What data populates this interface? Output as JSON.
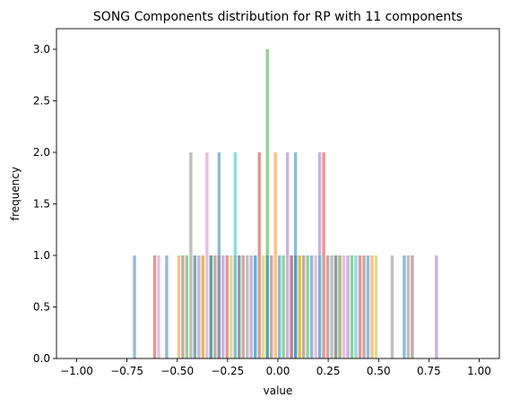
{
  "chart_data": {
    "type": "bar",
    "title": "SONG Components distribution for RP with 11 components",
    "xlabel": "value",
    "ylabel": "frequency",
    "xlim": [
      -1.1,
      1.1
    ],
    "ylim": [
      0,
      3.2
    ],
    "xticks": [
      "−1.00",
      "−0.75",
      "−0.50",
      "−0.25",
      "0.00",
      "0.25",
      "0.50",
      "0.75",
      "1.00"
    ],
    "xtick_values": [
      -1.0,
      -0.75,
      -0.5,
      -0.25,
      0.0,
      0.25,
      0.5,
      0.75,
      1.0
    ],
    "yticks": [
      "0.0",
      "0.5",
      "1.0",
      "1.5",
      "2.0",
      "2.5",
      "3.0"
    ],
    "ytick_values": [
      0.0,
      0.5,
      1.0,
      1.5,
      2.0,
      2.5,
      3.0
    ],
    "bin_width": 0.02,
    "bar_opacity": 0.5,
    "grid": false,
    "legend": "none",
    "series": [
      {
        "color": "#1f77b4",
        "bins": [
          [
            -0.72,
            1
          ],
          [
            -0.56,
            1
          ],
          [
            -0.3,
            2
          ],
          [
            -0.12,
            1
          ],
          [
            0.08,
            2
          ],
          [
            0.16,
            1
          ],
          [
            0.3,
            1
          ],
          [
            0.62,
            1
          ]
        ]
      },
      {
        "color": "#ff7f0e",
        "bins": [
          [
            -0.5,
            1
          ],
          [
            -0.38,
            1
          ],
          [
            -0.2,
            1
          ],
          [
            -0.02,
            2
          ],
          [
            0.1,
            1
          ],
          [
            0.28,
            1
          ],
          [
            0.46,
            1
          ]
        ]
      },
      {
        "color": "#2ca02c",
        "bins": [
          [
            -0.46,
            1
          ],
          [
            -0.34,
            1
          ],
          [
            -0.06,
            3
          ],
          [
            0.02,
            1
          ],
          [
            0.14,
            1
          ],
          [
            0.36,
            1
          ]
        ]
      },
      {
        "color": "#d62728",
        "bins": [
          [
            -0.62,
            1
          ],
          [
            -0.42,
            1
          ],
          [
            -0.26,
            1
          ],
          [
            -0.1,
            2
          ],
          [
            0.06,
            1
          ],
          [
            0.22,
            2
          ],
          [
            0.4,
            1
          ]
        ]
      },
      {
        "color": "#9467bd",
        "bins": [
          [
            -0.4,
            1
          ],
          [
            -0.28,
            1
          ],
          [
            -0.14,
            1
          ],
          [
            0.04,
            2
          ],
          [
            0.2,
            2
          ],
          [
            0.34,
            1
          ],
          [
            0.78,
            1
          ]
        ]
      },
      {
        "color": "#8c564b",
        "bins": [
          [
            -0.48,
            1
          ],
          [
            -0.32,
            1
          ],
          [
            -0.18,
            1
          ],
          [
            -0.04,
            1
          ],
          [
            0.12,
            1
          ],
          [
            0.24,
            1
          ],
          [
            0.42,
            1
          ],
          [
            0.66,
            1
          ]
        ]
      },
      {
        "color": "#e377c2",
        "bins": [
          [
            -0.6,
            1
          ],
          [
            -0.36,
            2
          ],
          [
            -0.22,
            1
          ],
          [
            0.0,
            1
          ],
          [
            0.18,
            1
          ],
          [
            0.32,
            1
          ]
        ]
      },
      {
        "color": "#7f7f7f",
        "bins": [
          [
            -0.44,
            2
          ],
          [
            -0.3,
            1
          ],
          [
            -0.16,
            1
          ],
          [
            0.06,
            1
          ],
          [
            0.26,
            1
          ],
          [
            0.56,
            1
          ],
          [
            0.64,
            1
          ]
        ]
      },
      {
        "color": "#bcbd22",
        "bins": [
          [
            -0.38,
            1
          ],
          [
            -0.24,
            1
          ],
          [
            -0.08,
            1
          ],
          [
            0.1,
            1
          ],
          [
            0.3,
            1
          ],
          [
            0.48,
            1
          ]
        ]
      },
      {
        "color": "#17becf",
        "bins": [
          [
            -0.42,
            1
          ],
          [
            -0.22,
            2
          ],
          [
            -0.12,
            1
          ],
          [
            0.0,
            1
          ],
          [
            0.2,
            1
          ],
          [
            0.38,
            1
          ]
        ]
      },
      {
        "color": "#1f77b4",
        "bins": [
          [
            -0.34,
            1
          ],
          [
            -0.2,
            1
          ],
          [
            -0.06,
            1
          ],
          [
            0.08,
            1
          ],
          [
            0.28,
            1
          ],
          [
            0.44,
            1
          ]
        ]
      }
    ]
  }
}
